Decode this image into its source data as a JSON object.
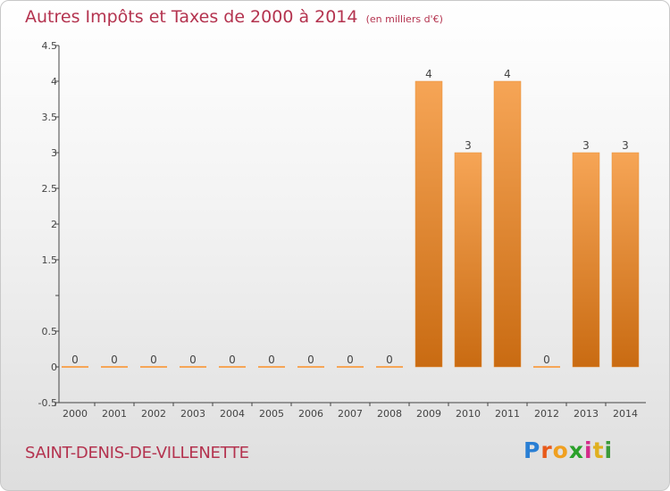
{
  "header": {
    "title": "Autres Impôts et Taxes de 2000 à 2014",
    "unit": "(en milliers d'€)"
  },
  "footer": {
    "commune": "SAINT-DENIS-DE-VILLENETTE",
    "logo_letters": [
      "P",
      "r",
      "o",
      "x",
      "i",
      "t",
      "i"
    ],
    "logo_colors": [
      "#2a7fd4",
      "#e85a1a",
      "#f0a020",
      "#2aa02a",
      "#d42a8a",
      "#e0b020",
      "#3a9a3a"
    ]
  },
  "colors": {
    "bar_light": "#f6a556",
    "bar_dark": "#c96b12",
    "axis": "#444444"
  },
  "chart_data": {
    "type": "bar",
    "title": "Autres Impôts et Taxes de 2000 à 2014",
    "categories": [
      "2000",
      "2001",
      "2002",
      "2003",
      "2004",
      "2005",
      "2006",
      "2007",
      "2008",
      "2009",
      "2010",
      "2011",
      "2012",
      "2013",
      "2014"
    ],
    "values": [
      0,
      0,
      0,
      0,
      0,
      0,
      0,
      0,
      0,
      4,
      3,
      4,
      0,
      3,
      3
    ],
    "data_labels": [
      "0",
      "0",
      "0",
      "0",
      "0",
      "0",
      "0",
      "0",
      "0",
      "4",
      "3",
      "4",
      "0",
      "3",
      "3"
    ],
    "ylim": [
      -0.5,
      4.5
    ],
    "yticks": [
      -0.5,
      0,
      0.5,
      1,
      1.5,
      2,
      2.5,
      3,
      3.5,
      4,
      4.5
    ],
    "ytick_labels": [
      "-0.5",
      "0",
      "0.5",
      "",
      "1.5",
      "2",
      "2.5",
      "3",
      "3.5",
      "4",
      "4.5"
    ],
    "grid": false,
    "xlabel": "",
    "ylabel": ""
  }
}
